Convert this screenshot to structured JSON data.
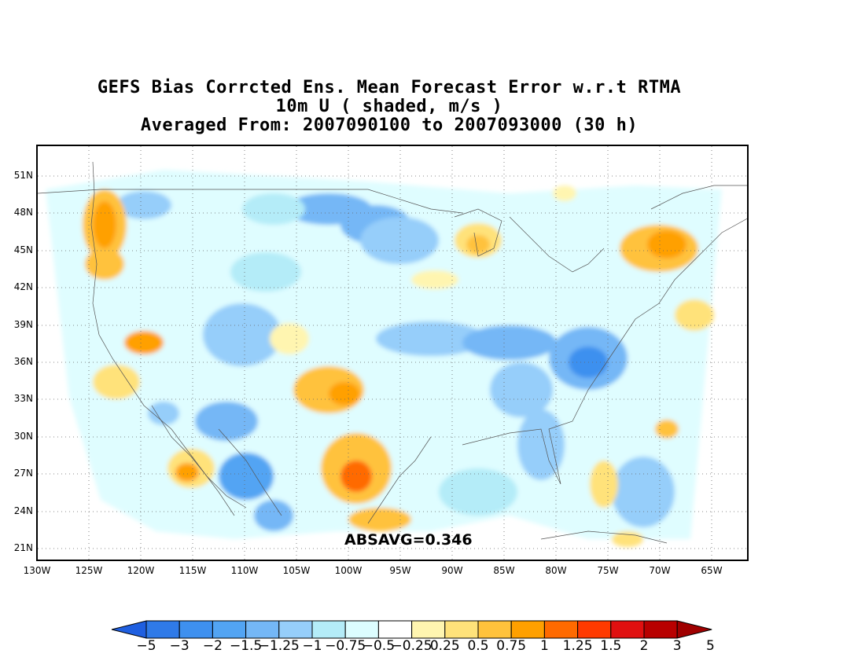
{
  "title": {
    "line1": "GEFS Bias Corrcted Ens. Mean Forecast Error w.r.t RTMA",
    "line2": "10m U ( shaded, m/s )",
    "line3": "Averaged From: 2007090100 to 2007093000 (30 h)"
  },
  "map": {
    "lat_labels": [
      "51N",
      "48N",
      "45N",
      "42N",
      "39N",
      "36N",
      "33N",
      "30N",
      "27N",
      "24N",
      "21N"
    ],
    "lon_labels": [
      "130W",
      "125W",
      "120W",
      "115W",
      "110W",
      "105W",
      "100W",
      "95W",
      "90W",
      "85W",
      "80W",
      "75W",
      "70W",
      "65W"
    ],
    "annotation": "ABSAVG=0.346",
    "colors": {
      "neg5": "#1f5fe0",
      "neg3": "#2f7ae8",
      "neg2": "#3e90ef",
      "neg15": "#52a4f3",
      "neg125": "#74b7f6",
      "neg1": "#96cefa",
      "neg075": "#b4ecf8",
      "neg05": "#dcfdff",
      "pos025": "#fff5b0",
      "pos05": "#ffe27a",
      "pos075": "#ffc23c",
      "pos1": "#ffa000",
      "pos125": "#ff6a00",
      "pos15": "#ff3a00",
      "pos2": "#e01010",
      "pos3": "#b80000",
      "pos5": "#a00000"
    }
  },
  "colorbar": {
    "labels": [
      "−5",
      "−3",
      "−2",
      "−1.5",
      "−1.25",
      "−1",
      "−0.75",
      "−0.5",
      "−0.25",
      "0.25",
      "0.5",
      "0.75",
      "1",
      "1.25",
      "1.5",
      "2",
      "3",
      "5"
    ],
    "colors": [
      "#1f5fe0",
      "#2f7ae8",
      "#3e90ef",
      "#52a4f3",
      "#74b7f6",
      "#96cefa",
      "#b4ecf8",
      "#dcfdff",
      "#ffffff",
      "#fff5b0",
      "#ffe27a",
      "#ffc23c",
      "#ffa000",
      "#ff6a00",
      "#ff3a00",
      "#e01010",
      "#b80000",
      "#a00000"
    ]
  }
}
